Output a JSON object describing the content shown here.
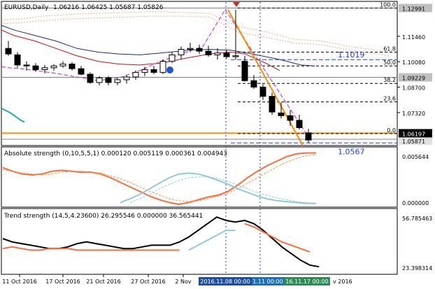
{
  "header": {
    "symbol": "EURUSD,Daily",
    "ohlc": "1.06216 1.06425 1.05687 1.05826"
  },
  "panels": {
    "ind1_label": "Absolute strength (0,10,5,5,1) 0.000120 0.005119 0.000361 0.004943",
    "ind2_label": "Trend strength (14,5,4.23600) 26.295546 0.000000 36.565441"
  },
  "colors": {
    "price_axis_tag": "#c0c0c0",
    "current_price_tag": "#000000",
    "orange": "#ff8c00",
    "blue_text": "#1a3cff",
    "fib": "#000000",
    "tag_time_1": "#1f4e9e",
    "tag_time_2": "#1f6fb8",
    "tag_time_3": "#2e8b57"
  },
  "chart_data": [
    {
      "type": "candlestick",
      "title": "EURUSD,Daily",
      "y_ticks": [
        "1.12991",
        "1.11460",
        "1.10080",
        "1.09229",
        "1.08700",
        "1.07320",
        "1.06197",
        "1.05871"
      ],
      "ylim": [
        1.0553,
        1.1335
      ],
      "candles": [
        {
          "o": 1.108,
          "h": 1.112,
          "l": 1.104,
          "c": 1.105
        },
        {
          "o": 1.1045,
          "h": 1.106,
          "l": 1.0975,
          "c": 1.099
        },
        {
          "o": 1.099,
          "h": 1.101,
          "l": 1.096,
          "c": 1.0985
        },
        {
          "o": 1.0985,
          "h": 1.1,
          "l": 1.0955,
          "c": 1.0965
        },
        {
          "o": 1.0965,
          "h": 1.099,
          "l": 1.0945,
          "c": 1.0975
        },
        {
          "o": 1.0975,
          "h": 1.0995,
          "l": 1.096,
          "c": 1.0985
        },
        {
          "o": 1.0985,
          "h": 1.101,
          "l": 1.0975,
          "c": 1.0995
        },
        {
          "o": 1.0995,
          "h": 1.1005,
          "l": 1.096,
          "c": 1.097
        },
        {
          "o": 1.097,
          "h": 1.0985,
          "l": 1.0935,
          "c": 1.094
        },
        {
          "o": 1.094,
          "h": 1.095,
          "l": 1.0888,
          "c": 1.0895
        },
        {
          "o": 1.0895,
          "h": 1.093,
          "l": 1.088,
          "c": 1.092
        },
        {
          "o": 1.092,
          "h": 1.093,
          "l": 1.088,
          "c": 1.0895
        },
        {
          "o": 1.0895,
          "h": 1.092,
          "l": 1.088,
          "c": 1.091
        },
        {
          "o": 1.091,
          "h": 1.0935,
          "l": 1.089,
          "c": 1.0925
        },
        {
          "o": 1.0925,
          "h": 1.096,
          "l": 1.091,
          "c": 1.095
        },
        {
          "o": 1.095,
          "h": 1.098,
          "l": 1.093,
          "c": 1.0965
        },
        {
          "o": 1.0965,
          "h": 1.0985,
          "l": 1.094,
          "c": 1.095
        },
        {
          "o": 1.095,
          "h": 1.102,
          "l": 1.094,
          "c": 1.101
        },
        {
          "o": 1.101,
          "h": 1.106,
          "l": 1.1,
          "c": 1.1045
        },
        {
          "o": 1.1045,
          "h": 1.109,
          "l": 1.102,
          "c": 1.1075
        },
        {
          "o": 1.1075,
          "h": 1.111,
          "l": 1.106,
          "c": 1.108
        },
        {
          "o": 1.108,
          "h": 1.11,
          "l": 1.105,
          "c": 1.1065
        },
        {
          "o": 1.1065,
          "h": 1.1095,
          "l": 1.1035,
          "c": 1.1045
        },
        {
          "o": 1.1045,
          "h": 1.108,
          "l": 1.102,
          "c": 1.1055
        },
        {
          "o": 1.1055,
          "h": 1.107,
          "l": 1.1025,
          "c": 1.1035
        },
        {
          "o": 1.1035,
          "h": 1.129,
          "l": 1.102,
          "c": 1.104
        },
        {
          "o": 1.101,
          "h": 1.104,
          "l": 1.09,
          "c": 1.0905
        },
        {
          "o": 1.0905,
          "h": 1.0935,
          "l": 1.086,
          "c": 1.087
        },
        {
          "o": 1.087,
          "h": 1.0885,
          "l": 1.08,
          "c": 1.082
        },
        {
          "o": 1.082,
          "h": 1.084,
          "l": 1.072,
          "c": 1.0735
        },
        {
          "o": 1.073,
          "h": 1.079,
          "l": 1.07,
          "c": 1.0715
        },
        {
          "o": 1.0715,
          "h": 1.0745,
          "l": 1.066,
          "c": 1.069
        },
        {
          "o": 1.069,
          "h": 1.072,
          "l": 1.064,
          "c": 1.065
        },
        {
          "o": 1.0622,
          "h": 1.0643,
          "l": 1.0569,
          "c": 1.0583
        }
      ],
      "fib_levels": [
        {
          "label": "100.0",
          "price": 1.1299
        },
        {
          "label": "61.8",
          "price": 1.106
        },
        {
          "label": "50.0",
          "price": 1.0985
        },
        {
          "label": "38.2",
          "price": 1.089
        },
        {
          "label": "23.6",
          "price": 1.079
        },
        {
          "label": "0.0",
          "price": 1.0618
        }
      ],
      "level_labels": [
        {
          "text": "1.1019",
          "price": 1.1019
        },
        {
          "text": "1.0567",
          "price": 1.0567
        }
      ],
      "x_ticks": [
        "11 Oct 2016",
        "17 Oct 2016",
        "21 Oct 2016",
        "27 Oct 2016",
        "2 Nov"
      ],
      "time_tags": [
        "2016.11.08 00:00",
        "1.11 00:00",
        "16.11.17 00:00"
      ],
      "x_tail_label": "v 2016"
    },
    {
      "type": "line",
      "title": "Absolute strength (0,10,5,5,1) 0.000120 0.005119 0.000361 0.004943",
      "y_ticks": [
        "0.005644",
        "0.000000"
      ],
      "ylim": [
        0,
        0.005644
      ],
      "series": [
        {
          "color": "#ff6a3d",
          "style": "solid",
          "values": [
            0.004,
            0.0036,
            0.0033,
            0.0032,
            0.0033,
            0.0036,
            0.0037,
            0.0036,
            0.0035,
            0.0035,
            0.0033,
            0.0029,
            0.0024,
            0.0019,
            0.0014,
            0.0009,
            0.0005,
            0.0002,
            0.0,
            0.0002,
            0.0005,
            0.0008,
            0.001,
            0.0014,
            0.0021,
            0.0029,
            0.0036,
            0.0042,
            0.0047,
            0.0052,
            0.0055,
            0.0056,
            0.0056
          ]
        },
        {
          "color": "#ff8c33",
          "style": "dashed",
          "values": [
            0.0038,
            0.0036,
            0.0034,
            0.0033,
            0.0032,
            0.0033,
            0.0035,
            0.0036,
            0.0036,
            0.0035,
            0.0034,
            0.0031,
            0.0028,
            0.0024,
            0.0019,
            0.0014,
            0.001,
            0.0006,
            0.0004,
            0.0003,
            0.0004,
            0.0006,
            0.0009,
            0.0012,
            0.0017,
            0.0023,
            0.0029,
            0.0035,
            0.0041,
            0.0046,
            0.005,
            0.0053,
            0.0054
          ]
        },
        {
          "color": "#8fc8d8",
          "style": "solid",
          "values": [
            null,
            null,
            null,
            null,
            null,
            null,
            null,
            null,
            null,
            null,
            null,
            null,
            0.0002,
            0.0006,
            0.0011,
            0.0017,
            0.0023,
            0.0029,
            0.0033,
            0.0034,
            0.0033,
            0.003,
            0.0026,
            0.0022,
            0.0017,
            0.0013,
            0.0009,
            0.0006,
            0.0004,
            0.0003,
            0.0002,
            0.0001,
            0.0001
          ]
        },
        {
          "color": "#8fc8d8",
          "style": "dashed",
          "values": [
            null,
            null,
            null,
            null,
            null,
            null,
            null,
            null,
            null,
            null,
            null,
            null,
            null,
            0.0002,
            0.0006,
            0.0011,
            0.0017,
            0.0022,
            0.0026,
            0.0029,
            0.003,
            0.003,
            0.0028,
            0.0025,
            0.0021,
            0.0017,
            0.0013,
            0.001,
            0.0007,
            0.0005,
            0.0003,
            0.0002,
            0.0001
          ]
        }
      ]
    },
    {
      "type": "line",
      "title": "Trend strength (14,5,4.23600) 26.295546 0.000000 36.565441",
      "y_ticks": [
        "56.785463",
        "23.398314"
      ],
      "ylim": [
        23.398314,
        56.785463
      ],
      "series": [
        {
          "color": "#000000",
          "style": "solid",
          "values": [
            42,
            40,
            39,
            38,
            37,
            36,
            36,
            37,
            39,
            40,
            39,
            38,
            37,
            36,
            36,
            37,
            38,
            38,
            38,
            40,
            43,
            47,
            51,
            55,
            53,
            52,
            53,
            51,
            47,
            42,
            37,
            33,
            29,
            26,
            25
          ]
        },
        {
          "color": "#ff6a3d",
          "style": "solid",
          "values": [
            36,
            37,
            36,
            35,
            35,
            36,
            36,
            36,
            35,
            35,
            35,
            35,
            35,
            35,
            35,
            35,
            35,
            35,
            35,
            35,
            null,
            null,
            null,
            null,
            null,
            null,
            51,
            49,
            46,
            43,
            40,
            38,
            36,
            34
          ]
        },
        {
          "color": "#8fc8d8",
          "style": "solid",
          "values": [
            null,
            null,
            null,
            null,
            null,
            null,
            null,
            null,
            null,
            null,
            null,
            null,
            null,
            null,
            null,
            null,
            null,
            null,
            null,
            null,
            35,
            38,
            41,
            44,
            47,
            47,
            null,
            null,
            null,
            null,
            null,
            null,
            null,
            null
          ]
        }
      ]
    }
  ]
}
